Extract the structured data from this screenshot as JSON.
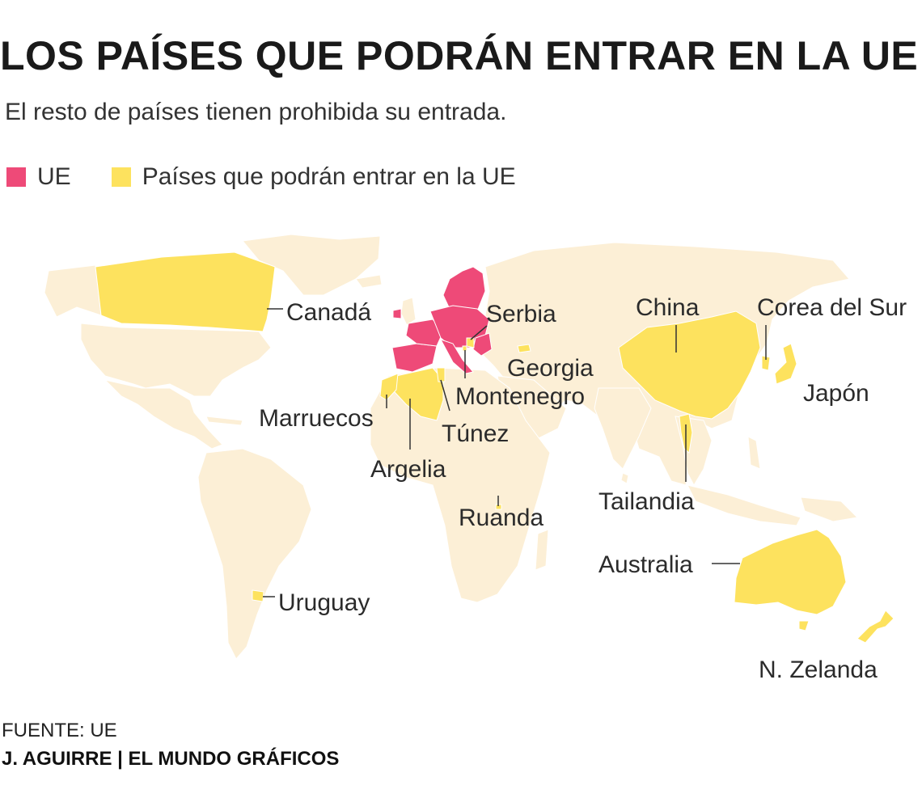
{
  "title": "LOS PAÍSES QUE  PODRÁN ENTRAR EN LA UE",
  "subtitle": "El resto de países tienen prohibida su entrada.",
  "legend": [
    {
      "label": "UE",
      "color": "#ee4a78"
    },
    {
      "label": "Países que podrán entrar en la UE",
      "color": "#fde25e"
    }
  ],
  "colors": {
    "land": "#fcefd6",
    "eu": "#ee4a78",
    "allowed": "#fde25e",
    "leader": "#333333"
  },
  "labels": {
    "canada": "Canadá",
    "serbia": "Serbia",
    "china": "China",
    "corea": "Corea del Sur",
    "georgia": "Georgia",
    "japon": "Japón",
    "montenegro": "Montenegro",
    "marruecos": "Marruecos",
    "tunez": "Túnez",
    "argelia": "Argelia",
    "tailandia": "Tailandia",
    "ruanda": "Ruanda",
    "australia": "Australia",
    "uruguay": "Uruguay",
    "nzelanda": "N. Zelanda"
  },
  "source": "FUENTE: UE",
  "credit": "J. AGUIRRE | EL MUNDO GRÁFICOS"
}
